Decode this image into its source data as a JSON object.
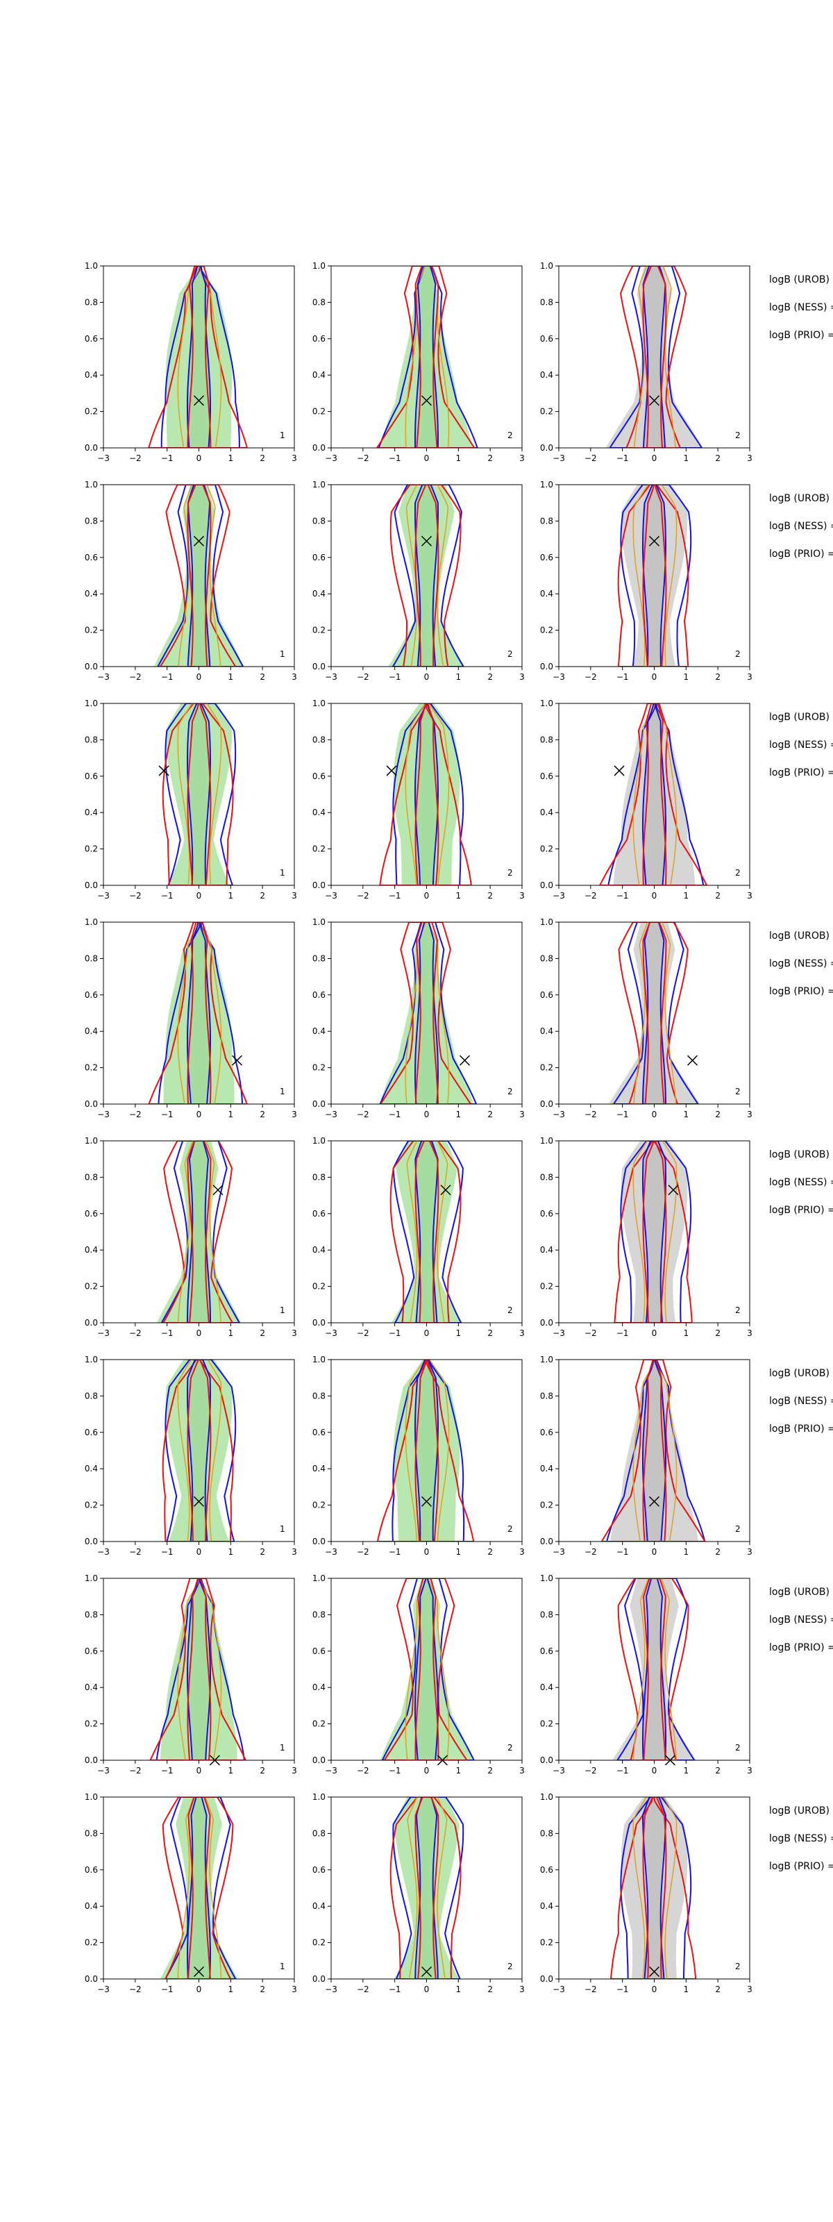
{
  "colors": {
    "green_fill": "#b8e8b0",
    "gray_fill": "#d6d6d6",
    "blue": "#1010ee",
    "red": "#ee1010",
    "orange": "#e0a020",
    "axis": "#000000"
  },
  "chart_data": {
    "type": "contour-grid",
    "rows": 8,
    "cols": 3,
    "xlim": [
      -3,
      3
    ],
    "ylim": [
      0,
      1
    ],
    "x_ticks": [
      "−3",
      "−2",
      "−1",
      "0",
      "1",
      "2",
      "3"
    ],
    "y_ticks": [
      "0.0",
      "0.2",
      "0.4",
      "0.6",
      "0.8",
      "1.0"
    ],
    "column_corner_labels": [
      "1",
      "2",
      "2"
    ],
    "right_labels": [
      "logB (UROB) =",
      "logB (NESS) =",
      "logB (PRIO) ="
    ],
    "cross_markers": [
      {
        "x": 0.0,
        "y": 0.26
      },
      {
        "x": 0.0,
        "y": 0.69
      },
      {
        "x": -1.1,
        "y": 0.63
      },
      {
        "x": 1.2,
        "y": 0.24
      },
      {
        "x": 0.6,
        "y": 0.73
      },
      {
        "x": 0.0,
        "y": 0.22
      },
      {
        "x": 0.5,
        "y": 0.0
      },
      {
        "x": 0.0,
        "y": 0.04
      }
    ]
  }
}
